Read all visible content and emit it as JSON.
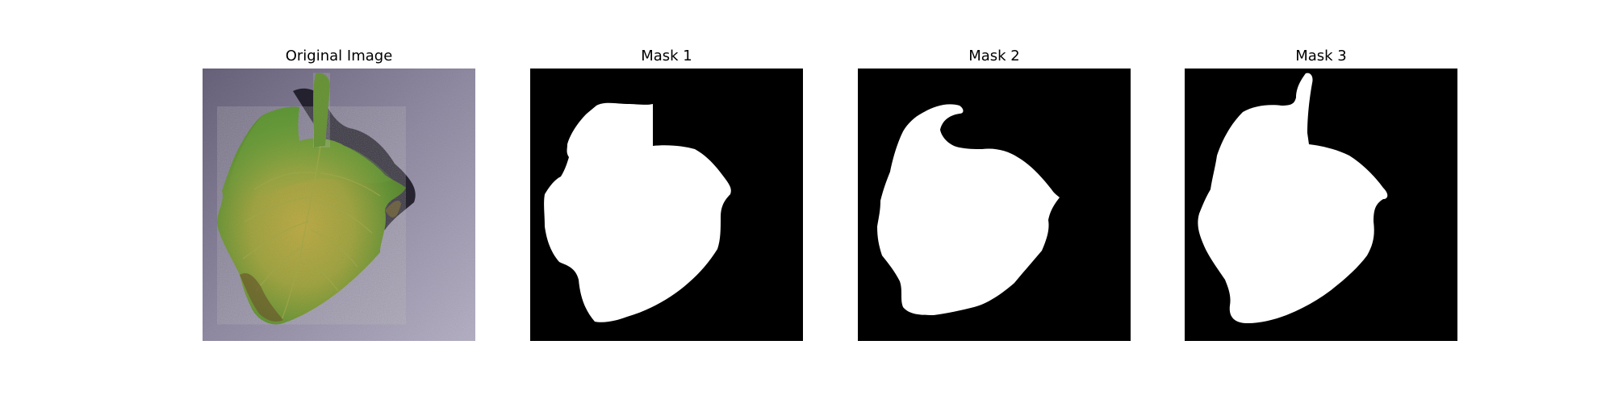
{
  "figure": {
    "panels": [
      {
        "title": "Original Image"
      },
      {
        "title": "Mask 1"
      },
      {
        "title": "Mask 2"
      },
      {
        "title": "Mask 3"
      }
    ],
    "colors": {
      "background_photo": "#8d87a0",
      "leaf_green": "#6f9a3c",
      "leaf_yellow": "#c7b44a",
      "shadow": "#1e1a28",
      "mask_bg": "#000000",
      "mask_fg": "#ffffff"
    }
  }
}
